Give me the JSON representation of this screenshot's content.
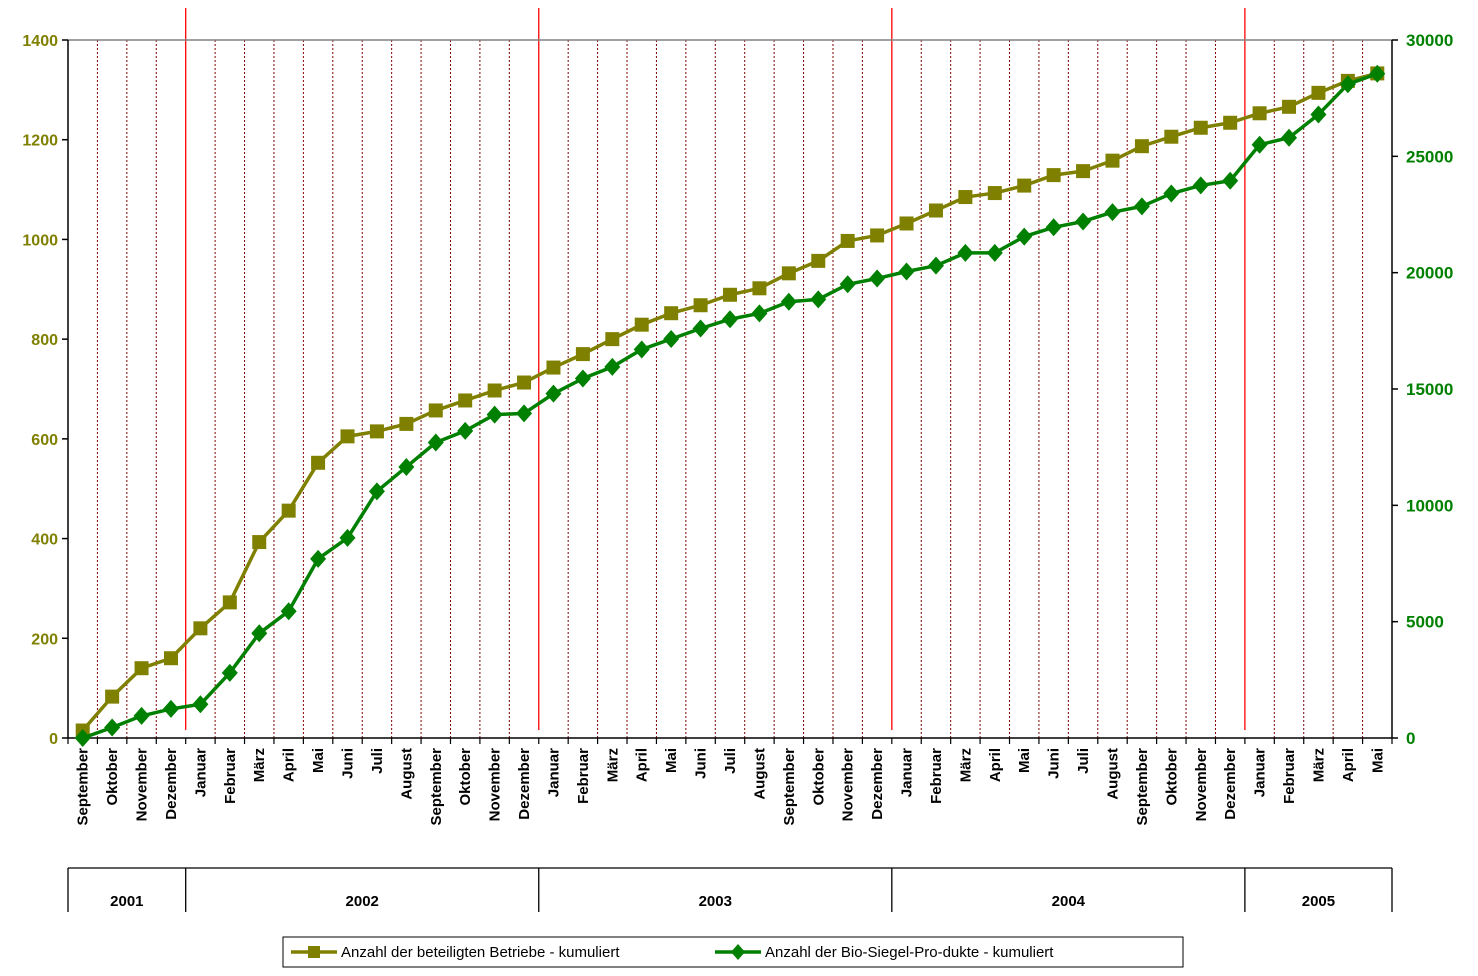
{
  "colors": {
    "series1": "#808000",
    "series2": "#008000",
    "left_axis_text": "#808000",
    "right_axis_text": "#008000",
    "month_grid": "#800000",
    "year_grid": "#ff0000",
    "axis": "#808080"
  },
  "chart_data": {
    "type": "line",
    "title": "",
    "xlabel": "",
    "ylabel": "",
    "x": [
      "September",
      "Oktober",
      "November",
      "Dezember",
      "Januar",
      "Februar",
      "März",
      "April",
      "Mai",
      "Juni",
      "Juli",
      "August",
      "September",
      "Oktober",
      "November",
      "Dezember",
      "Januar",
      "Februar",
      "März",
      "April",
      "Mai",
      "Juni",
      "Juli",
      "August",
      "September",
      "Oktober",
      "November",
      "Dezember",
      "Januar",
      "Februar",
      "März",
      "April",
      "Mai",
      "Juni",
      "Juli",
      "August",
      "September",
      "Oktober",
      "November",
      "Dezember",
      "Januar",
      "Februar",
      "März",
      "April",
      "Mai"
    ],
    "years": [
      {
        "label": "2001",
        "start": 0,
        "count": 4
      },
      {
        "label": "2002",
        "start": 4,
        "count": 12
      },
      {
        "label": "2003",
        "start": 16,
        "count": 12
      },
      {
        "label": "2004",
        "start": 28,
        "count": 12
      },
      {
        "label": "2005",
        "start": 40,
        "count": 5
      }
    ],
    "ylim_left": [
      0,
      1400
    ],
    "yticks_left": [
      "0",
      "200",
      "400",
      "600",
      "800",
      "1000",
      "1200",
      "1400"
    ],
    "ylim_right": [
      0,
      30000
    ],
    "yticks_right": [
      "0",
      "5000",
      "10000",
      "15000",
      "20000",
      "25000",
      "30000"
    ],
    "grid": "vertical dotted lines per month, solid red lines at year boundaries",
    "legend_position": "bottom",
    "series": [
      {
        "name": "Anzahl der beteiligten Betriebe - kumuliert",
        "axis": "left",
        "marker": "square",
        "values": [
          15,
          83,
          140,
          160,
          220,
          272,
          393,
          456,
          552,
          605,
          615,
          630,
          657,
          677,
          697,
          713,
          743,
          770,
          800,
          829,
          852,
          868,
          889,
          902,
          932,
          957,
          997,
          1008,
          1032,
          1058,
          1085,
          1093,
          1108,
          1129,
          1137,
          1158,
          1187,
          1206,
          1224,
          1234,
          1253,
          1266,
          1294,
          1318,
          1333
        ]
      },
      {
        "name": "Anzahl der Bio-Siegel-Pro-dukte -  kumuliert",
        "axis": "right",
        "marker": "diamond",
        "values": [
          0,
          450,
          950,
          1250,
          1450,
          2800,
          4500,
          5450,
          7700,
          8600,
          10600,
          11650,
          12700,
          13200,
          13900,
          13950,
          14800,
          15450,
          15950,
          16700,
          17150,
          17600,
          18000,
          18250,
          18750,
          18850,
          19500,
          19750,
          20050,
          20300,
          20850,
          20850,
          21550,
          21950,
          22200,
          22600,
          22850,
          23400,
          23750,
          23950,
          25500,
          25800,
          26800,
          28100,
          28550
        ]
      }
    ]
  }
}
